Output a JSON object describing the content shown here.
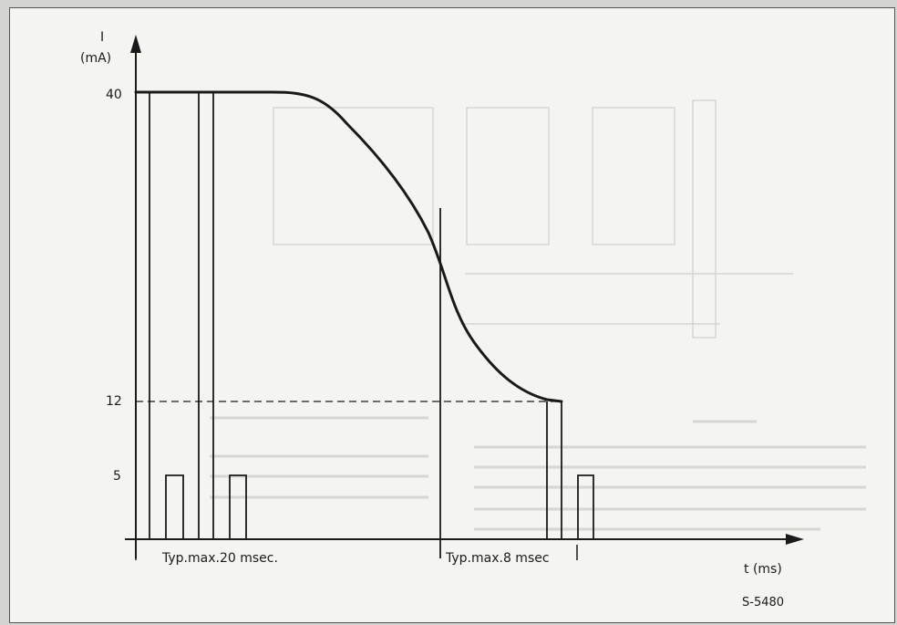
{
  "chart_data": {
    "type": "line",
    "y_axis": {
      "label": "I",
      "unit": "(mA)",
      "ticks": [
        "40",
        "12",
        "5"
      ]
    },
    "x_axis": {
      "label": "t (ms)"
    },
    "curve": "I decays from 40 mA to 12 mA",
    "reference_level": 12,
    "annotations": {
      "interval_1": "Typ.max.20 msec.",
      "interval_2": "Typ.max.8 msec"
    },
    "figure_code": "S-5480"
  }
}
